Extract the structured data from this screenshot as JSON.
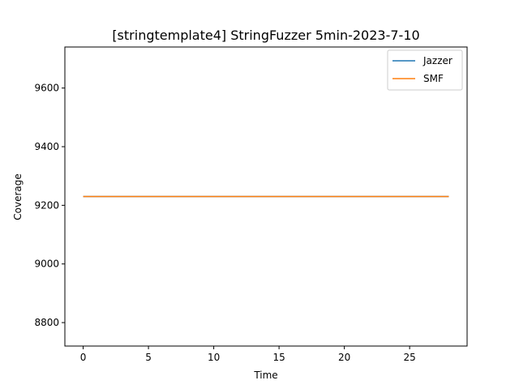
{
  "chart_data": {
    "type": "line",
    "title": "[stringtemplate4] StringFuzzer 5min-2023-7-10",
    "xlabel": "Time",
    "ylabel": "Coverage",
    "xlim": [
      -1.4,
      29.4
    ],
    "ylim": [
      8720,
      9740
    ],
    "xticks": [
      0,
      5,
      10,
      15,
      20,
      25
    ],
    "yticks": [
      8800,
      9000,
      9200,
      9400,
      9600
    ],
    "grid": false,
    "legend_position": "top-right",
    "series": [
      {
        "name": "Jazzer",
        "color": "#1f77b4",
        "x": [
          0,
          28
        ],
        "y": [
          9230,
          9230
        ]
      },
      {
        "name": "SMF",
        "color": "#ff7f0e",
        "x": [
          0,
          28
        ],
        "y": [
          9230,
          9230
        ]
      }
    ]
  }
}
